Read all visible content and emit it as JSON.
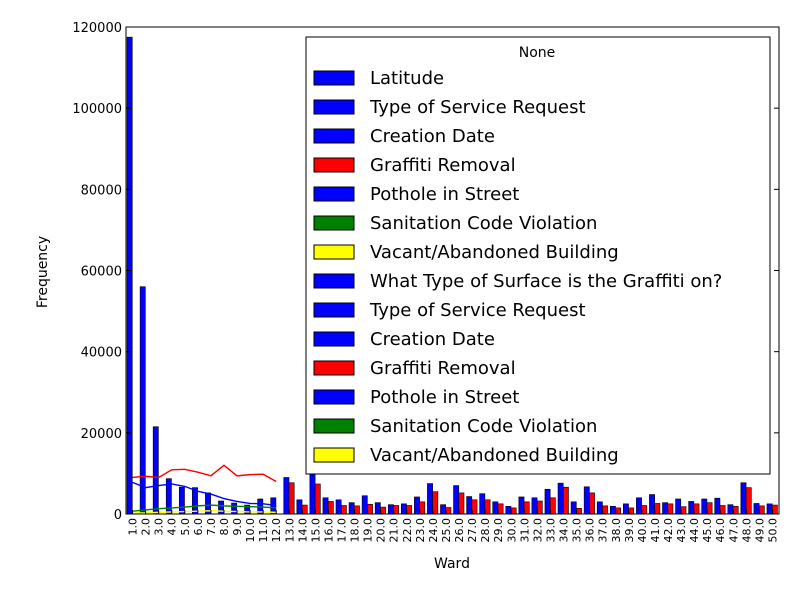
{
  "chart_data": {
    "type": "bar",
    "xlabel": "Ward",
    "ylabel": "Frequency",
    "ylim": [
      0,
      120000
    ],
    "yticks": [
      "0",
      "20000",
      "40000",
      "60000",
      "80000",
      "100000",
      "120000"
    ],
    "categories": [
      "1.0",
      "2.0",
      "3.0",
      "4.0",
      "5.0",
      "6.0",
      "7.0",
      "8.0",
      "9.0",
      "10.0",
      "11.0",
      "12.0",
      "13.0",
      "14.0",
      "15.0",
      "16.0",
      "17.0",
      "18.0",
      "19.0",
      "20.0",
      "21.0",
      "22.0",
      "23.0",
      "24.0",
      "25.0",
      "26.0",
      "27.0",
      "28.0",
      "29.0",
      "30.0",
      "31.0",
      "32.0",
      "33.0",
      "34.0",
      "35.0",
      "36.0",
      "37.0",
      "38.0",
      "39.0",
      "40.0",
      "41.0",
      "42.0",
      "43.0",
      "44.0",
      "45.0",
      "46.0",
      "47.0",
      "48.0",
      "49.0",
      "50.0"
    ],
    "legend": {
      "title": "None",
      "position": "top-right",
      "entries": [
        {
          "label": "Latitude",
          "color": "#0000ff"
        },
        {
          "label": "Type of Service Request",
          "color": "#0000ff"
        },
        {
          "label": "Creation Date",
          "color": "#0000ff"
        },
        {
          "label": "Graffiti Removal",
          "color": "#ff0000"
        },
        {
          "label": "Pothole in Street",
          "color": "#0000ff"
        },
        {
          "label": "Sanitation Code Violation",
          "color": "#008000"
        },
        {
          "label": "Vacant/Abandoned Building",
          "color": "#ffff00"
        },
        {
          "label": "What Type of Surface is the Graffiti on?",
          "color": "#0000ff"
        },
        {
          "label": "Type of Service Request",
          "color": "#0000ff"
        },
        {
          "label": "Creation Date",
          "color": "#0000ff"
        },
        {
          "label": "Graffiti Removal",
          "color": "#ff0000"
        },
        {
          "label": "Pothole in Street",
          "color": "#0000ff"
        },
        {
          "label": "Sanitation Code Violation",
          "color": "#008000"
        },
        {
          "label": "Vacant/Abandoned Building",
          "color": "#ffff00"
        }
      ]
    },
    "bar_series": [
      {
        "color": "#0000ff",
        "values": [
          117500,
          56000,
          21500,
          8700,
          6600,
          6500,
          5200,
          3200,
          2700,
          2200,
          3700,
          4000,
          9000,
          3500,
          10500,
          4000,
          3500,
          2800,
          4500,
          2800,
          2300,
          2500,
          4200,
          7500,
          2300,
          7000,
          4300,
          5000,
          3000,
          1900,
          4200,
          4000,
          6100,
          7600,
          3000,
          6700,
          3000,
          1900,
          2500,
          4000,
          4800,
          2800,
          3700,
          3100,
          3700,
          3900,
          2300,
          7700,
          2600,
          2500
        ]
      },
      {
        "color": "#ff0000",
        "values": [
          0,
          0,
          0,
          0,
          0,
          0,
          0,
          0,
          0,
          0,
          0,
          0,
          7700,
          2200,
          7400,
          3100,
          2100,
          2000,
          2400,
          1700,
          2100,
          2100,
          3000,
          5500,
          1600,
          5200,
          3500,
          3500,
          2500,
          1500,
          3000,
          3200,
          4000,
          6600,
          1400,
          5200,
          2000,
          1500,
          1500,
          2100,
          2600,
          2500,
          1800,
          2500,
          2800,
          2100,
          1900,
          6500,
          2000,
          2200
        ]
      }
    ],
    "line_series": [
      {
        "color": "#ff0000",
        "values": [
          9000,
          9300,
          9000,
          10900,
          11000,
          10300,
          9400,
          12000,
          9400,
          9700,
          9800,
          8000
        ]
      },
      {
        "color": "#0000ff",
        "values": [
          7800,
          6500,
          7000,
          7400,
          6800,
          5600,
          4900,
          3800,
          3100,
          2600,
          2500,
          2100
        ]
      },
      {
        "color": "#008000",
        "values": [
          700,
          1000,
          1300,
          1500,
          1700,
          2000,
          2200,
          2000,
          1900,
          1800,
          1700,
          1500
        ]
      },
      {
        "color": "#ffff00",
        "values": [
          200,
          300,
          400,
          500,
          600,
          700,
          800,
          700,
          600,
          500,
          500,
          400
        ]
      }
    ]
  }
}
